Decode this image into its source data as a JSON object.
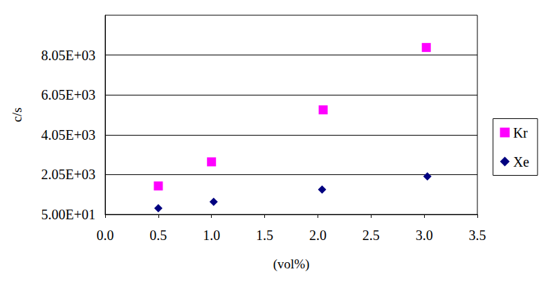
{
  "chart_data": {
    "type": "scatter",
    "x_label": "(vol%)",
    "y_label": "c/s",
    "xlim": [
      0,
      3.5
    ],
    "xticks": [
      {
        "value": 0,
        "label": "0.0"
      },
      0.5,
      {
        "value": 1,
        "label": "1.0"
      },
      1.5,
      {
        "value": 2,
        "label": "2.0"
      },
      2.5,
      {
        "value": 3,
        "label": "3.0"
      },
      3.5
    ],
    "ylim": [
      50,
      10050
    ],
    "yticks": [
      {
        "value": 50,
        "label": "5.00E+01"
      },
      {
        "value": 2050,
        "label": "2.05E+03"
      },
      {
        "value": 4050,
        "label": "4.05E+03"
      },
      {
        "value": 6050,
        "label": "6.05E+03"
      },
      {
        "value": 8050,
        "label": "8.05E+03"
      }
    ],
    "grid": true,
    "legend": "right",
    "series": [
      {
        "name": "Kr",
        "color": "#ff00ff",
        "marker": "square",
        "x": [
          0.5,
          1.0,
          2.05,
          3.02
        ],
        "values": [
          1480,
          2690,
          5300,
          8430
        ]
      },
      {
        "name": "Xe",
        "color": "#000080",
        "marker": "diamond",
        "x": [
          0.5,
          1.02,
          2.04,
          3.03
        ],
        "values": [
          360,
          680,
          1300,
          1960
        ]
      }
    ]
  }
}
